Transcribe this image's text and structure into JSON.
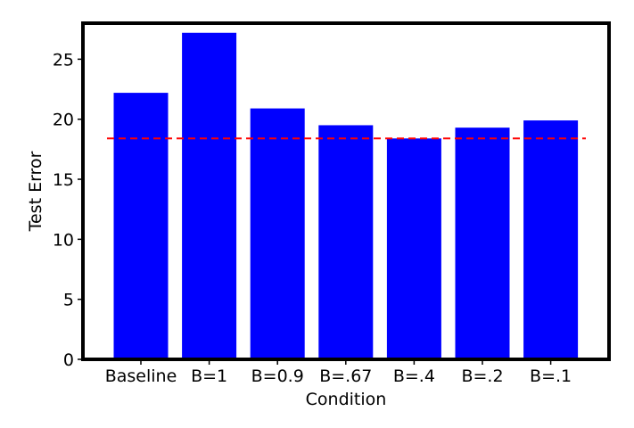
{
  "chart_data": {
    "type": "bar",
    "title": "",
    "xlabel": "Condition",
    "ylabel": "Test Error",
    "categories": [
      "Baseline",
      "B=1",
      "B=0.9",
      "B=.67",
      "B=.4",
      "B=.2",
      "B=.1"
    ],
    "values": [
      22.2,
      27.2,
      20.9,
      19.5,
      18.4,
      19.3,
      19.9
    ],
    "yticks": [
      "0",
      "5",
      "10",
      "15",
      "20",
      "25"
    ],
    "ylim": [
      0,
      28
    ],
    "reference_line": {
      "value": 18.4,
      "style": "dashed"
    },
    "grid": false,
    "colors": {
      "bar": "#0000ff",
      "reference_line": "#ff0000",
      "axes": "#000000"
    }
  }
}
